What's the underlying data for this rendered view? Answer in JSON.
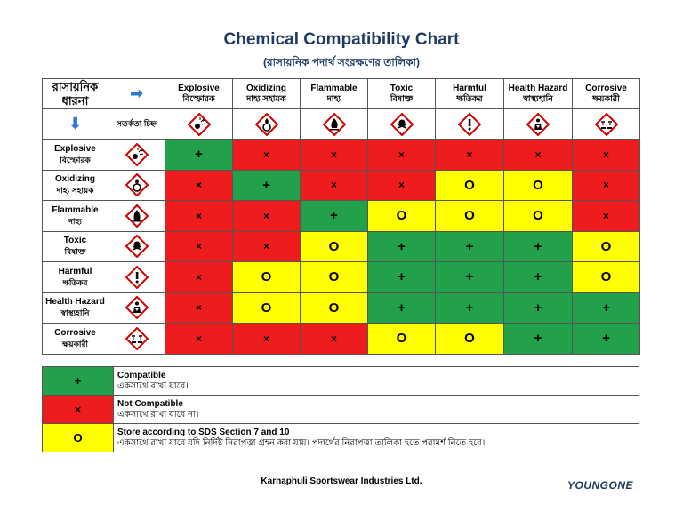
{
  "page": {
    "title": "Chemical Compatibility Chart",
    "subtitle": "(রাসায়নিক পদার্থ সংরক্ষণের তালিকা)",
    "company": "Karnaphuli Sportswear Industries Ltd.",
    "logo": "YOUNGONE"
  },
  "corner": {
    "label": "রাসায়নিক ধারনা",
    "symbol_label": "সতর্কতা চিহ্ন"
  },
  "columns": [
    {
      "en": "Explosive",
      "bn": "বিস্ফোরক",
      "icon": "exploding-bomb-icon"
    },
    {
      "en": "Oxidizing",
      "bn": "দাহ্য সহায়ক",
      "icon": "flame-over-circle-icon"
    },
    {
      "en": "Flammable",
      "bn": "দাহ্য",
      "icon": "flame-icon"
    },
    {
      "en": "Toxic",
      "bn": "বিষাক্ত",
      "icon": "skull-icon"
    },
    {
      "en": "Harmful",
      "bn": "ক্ষতিকর",
      "icon": "exclamation-icon"
    },
    {
      "en": "Health Hazard",
      "bn": "স্বাস্থ্যহানি",
      "icon": "health-hazard-icon"
    },
    {
      "en": "Corrosive",
      "bn": "ক্ষয়কারী",
      "icon": "corrosion-icon"
    }
  ],
  "rows": [
    {
      "en": "Explosive",
      "bn": "বিস্ফোরক",
      "icon": "exploding-bomb-icon",
      "cells": [
        "+",
        "×",
        "×",
        "×",
        "×",
        "×",
        "×"
      ]
    },
    {
      "en": "Oxidizing",
      "bn": "দাহ্য সহায়ক",
      "icon": "flame-over-circle-icon",
      "cells": [
        "×",
        "+",
        "×",
        "×",
        "O",
        "O",
        "×"
      ]
    },
    {
      "en": "Flammable",
      "bn": "দাহ্য",
      "icon": "flame-icon",
      "cells": [
        "×",
        "×",
        "+",
        "O",
        "O",
        "O",
        "×"
      ]
    },
    {
      "en": "Toxic",
      "bn": "বিষাক্ত",
      "icon": "skull-icon",
      "cells": [
        "×",
        "×",
        "O",
        "+",
        "+",
        "+",
        "O"
      ]
    },
    {
      "en": "Harmful",
      "bn": "ক্ষতিকর",
      "icon": "exclamation-icon",
      "cells": [
        "×",
        "O",
        "O",
        "+",
        "+",
        "+",
        "O"
      ]
    },
    {
      "en": "Health Hazard",
      "bn": "স্বাস্থ্যহানি",
      "icon": "health-hazard-icon",
      "cells": [
        "×",
        "O",
        "O",
        "+",
        "+",
        "+",
        "+"
      ]
    },
    {
      "en": "Corrosive",
      "bn": "ক্ষয়কারী",
      "icon": "corrosion-icon",
      "cells": [
        "×",
        "×",
        "×",
        "O",
        "O",
        "+",
        "+"
      ]
    }
  ],
  "legend": [
    {
      "symbol": "+",
      "color": "#22a14a",
      "title": "Compatible",
      "bn": "একসাথে রাখা যাবে।"
    },
    {
      "symbol": "×",
      "color": "#ee1c1c",
      "title": "Not Compatible",
      "bn": "একসাথে রাখা যাবে না।"
    },
    {
      "symbol": "O",
      "color": "#ffff00",
      "title": "Store according to SDS Section 7 and 10",
      "bn": "একসাথে রাখা যাবে যদি নির্দিষ্ট নিরাপত্তা গ্রহন করা যায়। পদার্থের নিরাপত্তা তালিকা হতে পরামর্শ নিতে হবে।"
    }
  ],
  "colors": {
    "compatible": "#22a14a",
    "not_compatible": "#ee1c1c",
    "conditional": "#ffff00",
    "title": "#1f3b64"
  }
}
